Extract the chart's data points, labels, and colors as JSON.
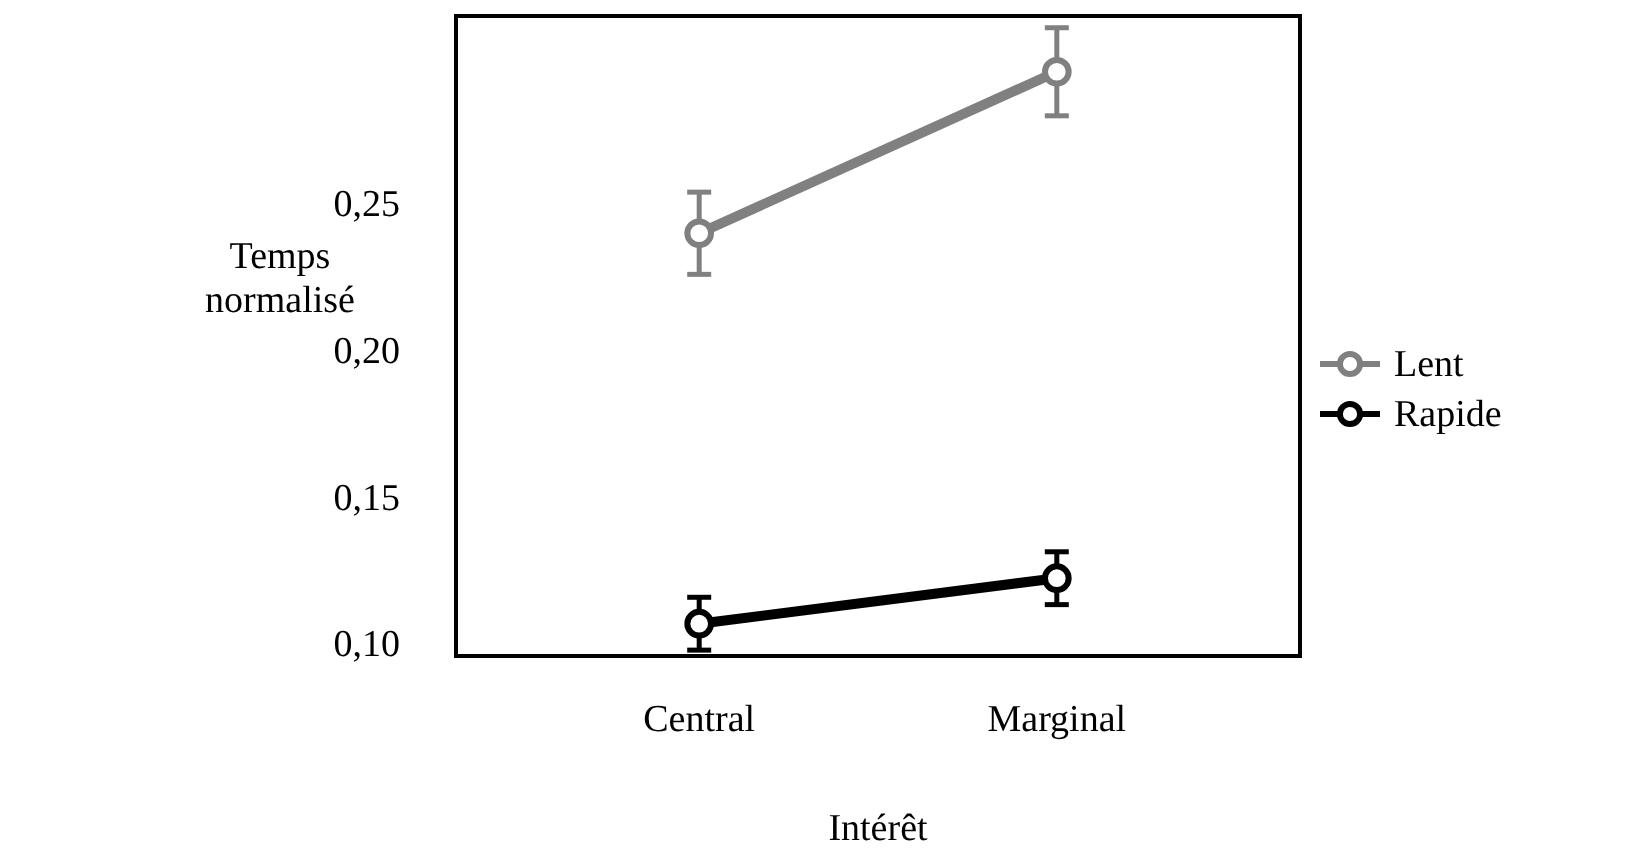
{
  "chart_data": {
    "type": "line",
    "xlabel": "Intérêt",
    "ylabel": "Temps normalisé",
    "categories": [
      "Central",
      "Marginal"
    ],
    "series": [
      {
        "name": "Lent",
        "color": "#808080",
        "values": [
          0.24,
          0.295
        ],
        "errors": [
          0.014,
          0.015
        ]
      },
      {
        "name": "Rapide",
        "color": "#000000",
        "values": [
          0.107,
          0.1225
        ],
        "errors": [
          0.009,
          0.009
        ]
      }
    ],
    "ylim": [
      0.096,
      0.314
    ],
    "yticks": [
      {
        "value": 0.1,
        "label": "0,10"
      },
      {
        "value": 0.15,
        "label": "0,15"
      },
      {
        "value": 0.2,
        "label": "0,20"
      },
      {
        "value": 0.25,
        "label": "0,25"
      }
    ],
    "grid": false,
    "legend": "right",
    "marker": "circle",
    "line_style": "solid"
  }
}
